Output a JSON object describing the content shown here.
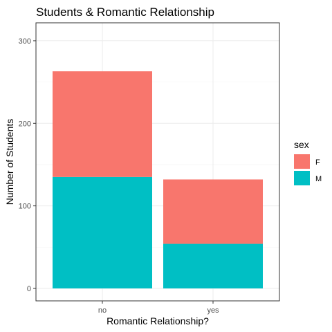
{
  "chart_data": {
    "type": "bar",
    "stacked": true,
    "title": "Students & Romantic Relationship",
    "xlabel": "Romantic Relationship?",
    "ylabel": "Number of Students",
    "categories": [
      "no",
      "yes"
    ],
    "ylim": [
      0,
      310
    ],
    "yticks": [
      0,
      100,
      200,
      300
    ],
    "grid": true,
    "legend": {
      "title": "sex",
      "position": "right"
    },
    "series": [
      {
        "name": "F",
        "color": "#F8766D",
        "values": [
          128,
          78
        ]
      },
      {
        "name": "M",
        "color": "#00BFC4",
        "values": [
          135,
          54
        ]
      }
    ]
  }
}
